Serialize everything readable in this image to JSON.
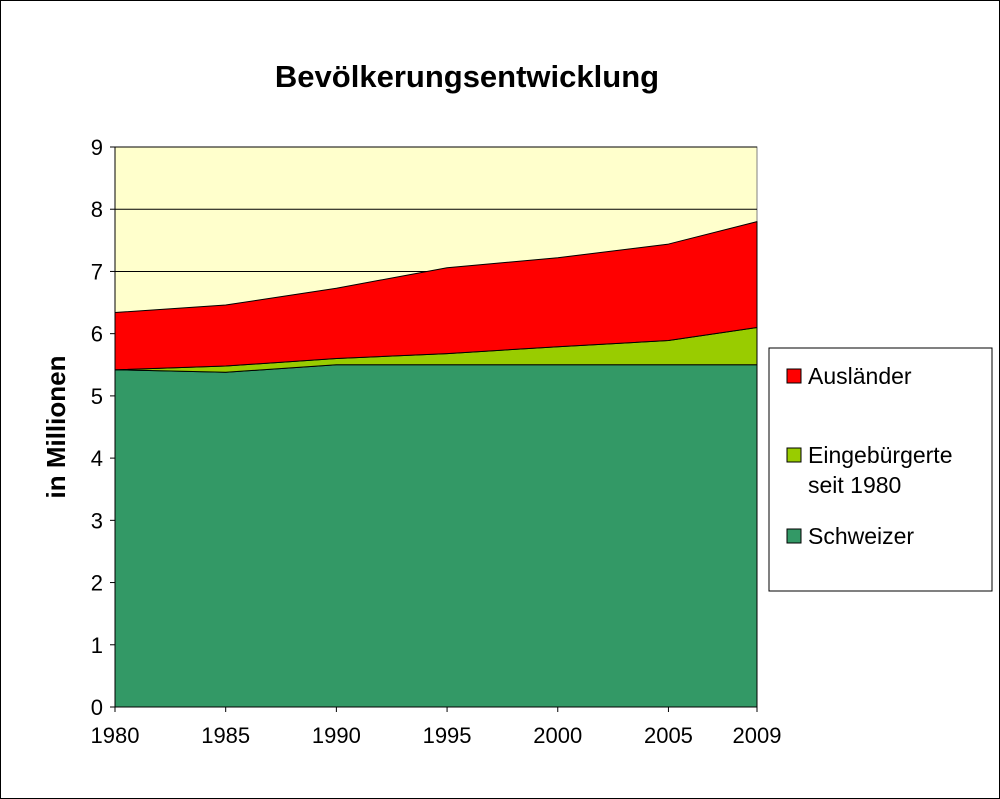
{
  "chart_data": {
    "type": "area",
    "stacked": true,
    "title": "Bevölkerungsentwicklung",
    "ylabel": "in Millionen",
    "xlabel": "",
    "x": [
      1980,
      1985,
      1990,
      1995,
      2000,
      2005,
      2009
    ],
    "xticks": [
      "1980",
      "1985",
      "1990",
      "1995",
      "2000",
      "2005",
      "2009"
    ],
    "ylim": [
      0,
      9
    ],
    "yticks": [
      "0",
      "1",
      "2",
      "3",
      "4",
      "5",
      "6",
      "7",
      "8",
      "9"
    ],
    "grid": "horizontal",
    "legend_position": "right",
    "plot_background": "#ffffcc",
    "series": [
      {
        "name": "Schweizer",
        "color": "#339966",
        "values": [
          5.42,
          5.38,
          5.5,
          5.5,
          5.5,
          5.5,
          5.5
        ]
      },
      {
        "name": "Eingebürgerte seit 1980",
        "legend_lines": [
          "Eingebürgerte",
          "seit 1980"
        ],
        "color": "#99cc00",
        "values": [
          0.0,
          0.1,
          0.1,
          0.18,
          0.29,
          0.39,
          0.6
        ]
      },
      {
        "name": "Ausländer",
        "color": "#ff0000",
        "values": [
          0.92,
          0.98,
          1.13,
          1.38,
          1.43,
          1.55,
          1.7
        ]
      }
    ],
    "legend_order": [
      "Ausländer",
      "Eingebürgerte seit 1980",
      "Schweizer"
    ]
  }
}
